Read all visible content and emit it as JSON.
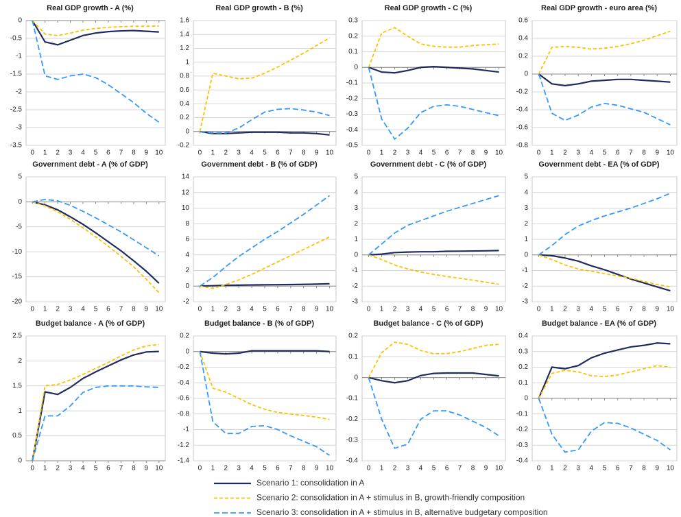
{
  "legend": [
    {
      "name": "Scenario 1: consolidation in A",
      "color": "#1f2a5e",
      "line_style": "solid"
    },
    {
      "name": "Scenario 2: consolidation in A + stimulus in B, growth-friendly composition",
      "color": "#ffc000",
      "line_style": "dashed"
    },
    {
      "name": "Scenario 3: consolidation in A + stimulus in B, alternative budgetary composition",
      "color": "#3399ff",
      "line_style": "long-dashed"
    }
  ],
  "chart_data": [
    {
      "type": "line",
      "title": "Real GDP growth - A (%)",
      "categories": [
        "0",
        "1",
        "2",
        "3",
        "4",
        "5",
        "6",
        "7",
        "8",
        "9",
        "10"
      ],
      "ylim": [
        -3.5,
        0
      ],
      "yticks": [
        -3.5,
        -3,
        -2.5,
        -2,
        -1.5,
        -1,
        -0.5,
        0
      ],
      "grid": true,
      "series": [
        {
          "values": [
            0,
            -0.6,
            -0.68,
            -0.55,
            -0.42,
            -0.35,
            -0.31,
            -0.29,
            -0.28,
            -0.3,
            -0.32
          ]
        },
        {
          "values": [
            0,
            -0.38,
            -0.42,
            -0.35,
            -0.27,
            -0.22,
            -0.19,
            -0.17,
            -0.16,
            -0.16,
            -0.15
          ]
        },
        {
          "values": [
            0,
            -1.55,
            -1.65,
            -1.55,
            -1.5,
            -1.6,
            -1.8,
            -2.05,
            -2.3,
            -2.6,
            -2.85
          ]
        }
      ]
    },
    {
      "type": "line",
      "title": "Real GDP growth - B (%)",
      "categories": [
        "0",
        "1",
        "2",
        "3",
        "4",
        "5",
        "6",
        "7",
        "8",
        "9",
        "10"
      ],
      "ylim": [
        -0.2,
        1.6
      ],
      "yticks": [
        -0.2,
        0,
        0.2,
        0.4,
        0.6,
        0.8,
        1,
        1.2,
        1.4,
        1.6
      ],
      "grid": true,
      "series": [
        {
          "values": [
            0,
            -0.03,
            -0.03,
            -0.02,
            -0.01,
            -0.01,
            -0.01,
            -0.02,
            -0.02,
            -0.03,
            -0.05
          ]
        },
        {
          "values": [
            0,
            0.84,
            0.8,
            0.76,
            0.77,
            0.84,
            0.93,
            1.03,
            1.13,
            1.24,
            1.35
          ]
        },
        {
          "values": [
            0,
            -0.02,
            -0.02,
            0.05,
            0.17,
            0.28,
            0.32,
            0.33,
            0.31,
            0.28,
            0.23
          ]
        }
      ]
    },
    {
      "type": "line",
      "title": "Real GDP growth - C (%)",
      "categories": [
        "0",
        "1",
        "2",
        "3",
        "4",
        "5",
        "6",
        "7",
        "8",
        "9",
        "10"
      ],
      "ylim": [
        -0.5,
        0.3
      ],
      "yticks": [
        -0.5,
        -0.4,
        -0.3,
        -0.2,
        -0.1,
        0,
        0.1,
        0.2,
        0.3
      ],
      "grid": true,
      "series": [
        {
          "values": [
            0,
            -0.03,
            -0.035,
            -0.02,
            0,
            0.005,
            0,
            -0.005,
            -0.01,
            -0.02,
            -0.03
          ]
        },
        {
          "values": [
            0,
            0.22,
            0.255,
            0.2,
            0.15,
            0.135,
            0.13,
            0.13,
            0.14,
            0.145,
            0.15
          ]
        },
        {
          "values": [
            0,
            -0.33,
            -0.46,
            -0.39,
            -0.29,
            -0.25,
            -0.24,
            -0.25,
            -0.27,
            -0.29,
            -0.31
          ]
        }
      ]
    },
    {
      "type": "line",
      "title": "Real GDP growth - euro area (%)",
      "categories": [
        "0",
        "1",
        "2",
        "3",
        "4",
        "5",
        "6",
        "7",
        "8",
        "9",
        "10"
      ],
      "ylim": [
        -0.8,
        0.6
      ],
      "yticks": [
        -0.8,
        -0.6,
        -0.4,
        -0.2,
        0,
        0.2,
        0.4,
        0.6
      ],
      "grid": true,
      "series": [
        {
          "values": [
            0,
            -0.11,
            -0.13,
            -0.11,
            -0.08,
            -0.07,
            -0.06,
            -0.06,
            -0.07,
            -0.08,
            -0.09
          ]
        },
        {
          "values": [
            0,
            0.3,
            0.31,
            0.3,
            0.28,
            0.29,
            0.31,
            0.34,
            0.38,
            0.43,
            0.48
          ]
        },
        {
          "values": [
            0,
            -0.44,
            -0.52,
            -0.46,
            -0.37,
            -0.33,
            -0.35,
            -0.39,
            -0.43,
            -0.5,
            -0.57
          ]
        }
      ]
    },
    {
      "type": "line",
      "title": "Government debt - A (% of GDP)",
      "categories": [
        "0",
        "1",
        "2",
        "3",
        "4",
        "5",
        "6",
        "7",
        "8",
        "9",
        "10"
      ],
      "ylim": [
        -20,
        5
      ],
      "yticks": [
        -20,
        -15,
        -10,
        -5,
        0,
        5
      ],
      "grid": true,
      "series": [
        {
          "values": [
            0,
            -0.6,
            -1.6,
            -3,
            -4.5,
            -6.2,
            -8,
            -9.8,
            -11.8,
            -13.9,
            -16.3
          ]
        },
        {
          "values": [
            0,
            -0.8,
            -2,
            -3.5,
            -5.2,
            -7,
            -8.9,
            -10.9,
            -13,
            -15.5,
            -18.2
          ]
        },
        {
          "values": [
            0,
            0.5,
            0.2,
            -0.7,
            -1.9,
            -3.2,
            -4.6,
            -6,
            -7.6,
            -9.2,
            -10.8
          ]
        }
      ]
    },
    {
      "type": "line",
      "title": "Government debt - B (% of GDP)",
      "categories": [
        "0",
        "1",
        "2",
        "3",
        "4",
        "5",
        "6",
        "7",
        "8",
        "9",
        "10"
      ],
      "ylim": [
        -2,
        14
      ],
      "yticks": [
        -2,
        0,
        2,
        4,
        6,
        8,
        10,
        12,
        14
      ],
      "grid": true,
      "series": [
        {
          "values": [
            0,
            0.05,
            0.1,
            0.12,
            0.15,
            0.17,
            0.18,
            0.2,
            0.22,
            0.25,
            0.3
          ]
        },
        {
          "values": [
            0,
            -0.3,
            0.2,
            0.8,
            1.5,
            2.3,
            3.1,
            3.9,
            4.7,
            5.5,
            6.3
          ]
        },
        {
          "values": [
            0,
            1.1,
            2.5,
            3.8,
            4.9,
            6,
            7,
            8.1,
            9.2,
            10.4,
            11.6
          ]
        }
      ]
    },
    {
      "type": "line",
      "title": "Government debt - C (% of GDP)",
      "categories": [
        "0",
        "1",
        "2",
        "3",
        "4",
        "5",
        "6",
        "7",
        "8",
        "9",
        "10"
      ],
      "ylim": [
        -3,
        5
      ],
      "yticks": [
        -3,
        -2,
        -1,
        0,
        1,
        2,
        3,
        4,
        5
      ],
      "grid": true,
      "series": [
        {
          "values": [
            0,
            0.05,
            0.15,
            0.18,
            0.2,
            0.2,
            0.23,
            0.24,
            0.25,
            0.26,
            0.28
          ]
        },
        {
          "values": [
            0,
            -0.3,
            -0.65,
            -0.9,
            -1.1,
            -1.25,
            -1.38,
            -1.5,
            -1.62,
            -1.75,
            -1.88
          ]
        },
        {
          "values": [
            0,
            0.7,
            1.4,
            1.9,
            2.2,
            2.5,
            2.8,
            3.05,
            3.3,
            3.55,
            3.8
          ]
        }
      ]
    },
    {
      "type": "line",
      "title": "Government debt - EA (% of GDP)",
      "categories": [
        "0",
        "1",
        "2",
        "3",
        "4",
        "5",
        "6",
        "7",
        "8",
        "9",
        "10"
      ],
      "ylim": [
        -3,
        5
      ],
      "yticks": [
        -3,
        -2,
        -1,
        0,
        1,
        2,
        3,
        4,
        5
      ],
      "grid": true,
      "series": [
        {
          "values": [
            0,
            -0.05,
            -0.2,
            -0.4,
            -0.7,
            -0.95,
            -1.25,
            -1.55,
            -1.8,
            -2.05,
            -2.3
          ]
        },
        {
          "values": [
            0,
            -0.3,
            -0.65,
            -0.9,
            -1.05,
            -1.2,
            -1.35,
            -1.5,
            -1.7,
            -1.9,
            -2.05
          ]
        },
        {
          "values": [
            0,
            0.6,
            1.3,
            1.85,
            2.2,
            2.5,
            2.75,
            3,
            3.3,
            3.6,
            3.95
          ]
        }
      ]
    },
    {
      "type": "line",
      "title": "Budget balance - A (% of GDP)",
      "categories": [
        "0",
        "1",
        "2",
        "3",
        "4",
        "5",
        "6",
        "7",
        "8",
        "9",
        "10"
      ],
      "ylim": [
        0,
        2.5
      ],
      "yticks": [
        0,
        0.5,
        1,
        1.5,
        2,
        2.5
      ],
      "grid": true,
      "series": [
        {
          "values": [
            0,
            1.38,
            1.33,
            1.47,
            1.65,
            1.78,
            1.9,
            2.02,
            2.12,
            2.18,
            2.19
          ]
        },
        {
          "values": [
            0,
            1.5,
            1.53,
            1.62,
            1.73,
            1.85,
            1.97,
            2.1,
            2.22,
            2.3,
            2.33
          ]
        },
        {
          "values": [
            0,
            0.9,
            0.9,
            1.1,
            1.37,
            1.47,
            1.5,
            1.5,
            1.5,
            1.48,
            1.47
          ]
        }
      ]
    },
    {
      "type": "line",
      "title": "Budget balance - B (% of GDP)",
      "categories": [
        "0",
        "1",
        "2",
        "3",
        "4",
        "5",
        "6",
        "7",
        "8",
        "9",
        "10"
      ],
      "ylim": [
        -1.4,
        0.2
      ],
      "yticks": [
        -1.4,
        -1.2,
        -1,
        -0.8,
        -0.6,
        -0.4,
        -0.2,
        0,
        0.2
      ],
      "grid": true,
      "series": [
        {
          "values": [
            0,
            -0.02,
            -0.03,
            -0.02,
            0.01,
            0.01,
            0.01,
            0.01,
            0.01,
            0.01,
            0
          ]
        },
        {
          "values": [
            0,
            -0.47,
            -0.52,
            -0.6,
            -0.68,
            -0.74,
            -0.78,
            -0.8,
            -0.82,
            -0.84,
            -0.87
          ]
        },
        {
          "values": [
            0,
            -0.9,
            -1.05,
            -1.05,
            -0.96,
            -0.95,
            -1,
            -1.08,
            -1.15,
            -1.22,
            -1.33
          ]
        }
      ]
    },
    {
      "type": "line",
      "title": "Budget balance - C (% of GDP)",
      "categories": [
        "0",
        "1",
        "2",
        "3",
        "4",
        "5",
        "6",
        "7",
        "8",
        "9",
        "10"
      ],
      "ylim": [
        -0.4,
        0.2
      ],
      "yticks": [
        -0.4,
        -0.3,
        -0.2,
        -0.1,
        0,
        0.1,
        0.2
      ],
      "grid": true,
      "series": [
        {
          "values": [
            0,
            -0.015,
            -0.025,
            -0.015,
            0.01,
            0.02,
            0.022,
            0.022,
            0.022,
            0.015,
            0.008
          ]
        },
        {
          "values": [
            0,
            0.12,
            0.17,
            0.16,
            0.13,
            0.115,
            0.115,
            0.125,
            0.14,
            0.155,
            0.16
          ]
        },
        {
          "values": [
            0,
            -0.2,
            -0.34,
            -0.32,
            -0.2,
            -0.16,
            -0.16,
            -0.18,
            -0.21,
            -0.24,
            -0.28
          ]
        }
      ]
    },
    {
      "type": "line",
      "title": "Budget balance - EA (% of GDP)",
      "categories": [
        "0",
        "1",
        "2",
        "3",
        "4",
        "5",
        "6",
        "7",
        "8",
        "9",
        "10"
      ],
      "ylim": [
        -0.4,
        0.4
      ],
      "yticks": [
        -0.4,
        -0.3,
        -0.2,
        -0.1,
        0,
        0.1,
        0.2,
        0.3,
        0.4
      ],
      "grid": true,
      "series": [
        {
          "values": [
            0,
            0.2,
            0.19,
            0.21,
            0.26,
            0.29,
            0.31,
            0.33,
            0.34,
            0.355,
            0.35
          ]
        },
        {
          "values": [
            0,
            0.16,
            0.18,
            0.17,
            0.145,
            0.14,
            0.15,
            0.17,
            0.19,
            0.21,
            0.2
          ]
        },
        {
          "values": [
            0,
            -0.23,
            -0.345,
            -0.33,
            -0.21,
            -0.155,
            -0.16,
            -0.19,
            -0.23,
            -0.27,
            -0.33
          ]
        }
      ]
    }
  ]
}
